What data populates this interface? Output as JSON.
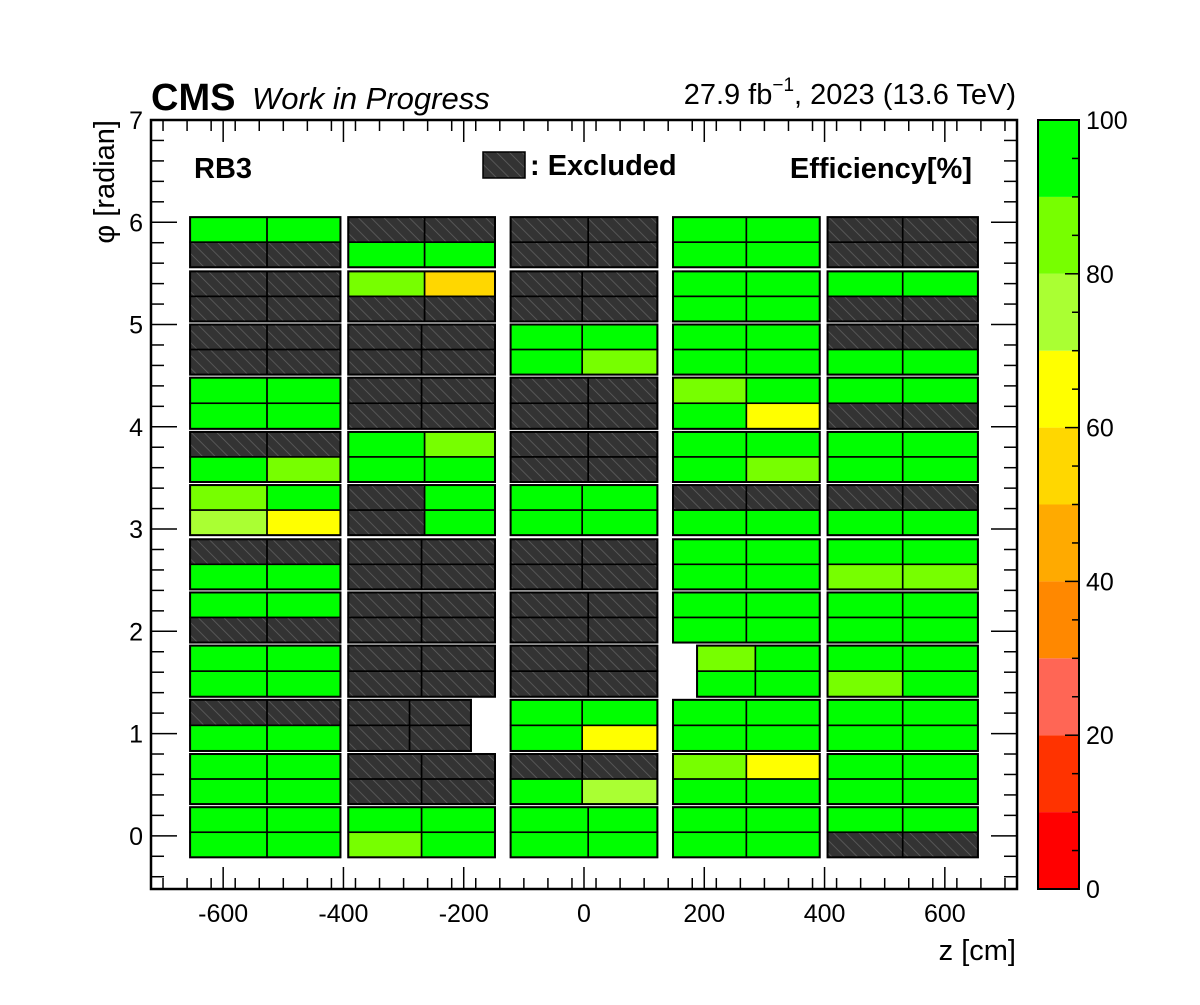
{
  "header": {
    "experiment": "CMS",
    "status": "Work in Progress",
    "luminosity": "27.9 fb",
    "lumi_exponent": "−1",
    "run_info": ", 2023 (13.6 TeV)"
  },
  "chart_data": {
    "type": "heatmap",
    "station_label": "RB3",
    "z_label": "Efficiency[%]",
    "excluded_label": ": Excluded",
    "xlabel": "z [cm]",
    "ylabel_symbol": "φ",
    "ylabel_unit": " [radian]",
    "xlim": [
      -720,
      720
    ],
    "ylim": [
      -0.52,
      7
    ],
    "zlim": [
      0,
      100
    ],
    "x_ticks": [
      -600,
      -400,
      -200,
      0,
      200,
      400,
      600
    ],
    "x_tick_labels": [
      "-600",
      "-400",
      "-200",
      "0",
      "200",
      "400",
      "600"
    ],
    "y_ticks": [
      0,
      1,
      2,
      3,
      4,
      5,
      6,
      7
    ],
    "y_tick_labels": [
      "0",
      "1",
      "2",
      "3",
      "4",
      "5",
      "6",
      "7"
    ],
    "palette_ticks": [
      0,
      20,
      40,
      60,
      80,
      100
    ],
    "palette_tick_labels": [
      "0",
      "20",
      "40",
      "60",
      "80",
      "100"
    ],
    "palette_colors": [
      "#ff0000",
      "#ff3300",
      "#ff6655",
      "#ff8800",
      "#ffaa00",
      "#ffd700",
      "#ffff00",
      "#aaff33",
      "#77ff00",
      "#00ff00"
    ],
    "excluded_color": "#333333",
    "wheels": [
      {
        "name": "W-2",
        "z_range": [
          -655,
          -405
        ]
      },
      {
        "name": "W-1",
        "z_range": [
          -392,
          -148
        ]
      },
      {
        "name": "W0",
        "z_range": [
          -122,
          122
        ]
      },
      {
        "name": "W+1",
        "z_range": [
          148,
          392
        ]
      },
      {
        "name": "W+2",
        "z_range": [
          405,
          655
        ]
      }
    ],
    "sectors": [
      {
        "phi_range": [
          -0.21,
          0.28
        ],
        "wheels": [
          {
            "split": -527,
            "rows": [
              [
                "ok",
                "ok"
              ],
              [
                "ok",
                "ok"
              ]
            ]
          },
          {
            "split": -270,
            "rows": [
              [
                "ok",
                "ok"
              ],
              [
                82,
                "ok"
              ]
            ]
          },
          {
            "split": 7,
            "rows": [
              [
                "ok",
                "ok"
              ],
              [
                "ok",
                "ok"
              ]
            ]
          },
          {
            "split": 270,
            "rows": [
              [
                "ok",
                "ok"
              ],
              [
                "ok",
                "ok"
              ]
            ]
          },
          {
            "split": 530,
            "rows": [
              [
                "ok",
                "ok"
              ],
              [
                "x",
                "x"
              ]
            ]
          }
        ]
      },
      {
        "phi_range": [
          0.31,
          0.8
        ],
        "wheels": [
          {
            "split": -527,
            "rows": [
              [
                "ok",
                "ok"
              ],
              [
                "ok",
                "ok"
              ]
            ]
          },
          {
            "split": -270,
            "rows": [
              [
                "x",
                "x"
              ],
              [
                "x",
                "x"
              ]
            ]
          },
          {
            "split": -3,
            "rows": [
              [
                "x",
                "x"
              ],
              [
                "ok",
                72
              ]
            ]
          },
          {
            "split": 270,
            "rows": [
              [
                82,
                62
              ],
              [
                "ok",
                "ok"
              ]
            ]
          },
          {
            "split": 530,
            "rows": [
              [
                "ok",
                "ok"
              ],
              [
                "ok",
                "ok"
              ]
            ]
          }
        ]
      },
      {
        "phi_range": [
          0.83,
          1.33
        ],
        "wheels": [
          {
            "split": -527,
            "rows": [
              [
                "x",
                "x"
              ],
              [
                "ok",
                "ok"
              ]
            ]
          },
          {
            "split": -290,
            "z_range": [
              -392,
              -188
            ],
            "rows": [
              [
                "x",
                "x"
              ],
              [
                "x",
                "x"
              ]
            ]
          },
          {
            "split": -3,
            "rows": [
              [
                "ok",
                "ok"
              ],
              [
                "ok",
                62
              ]
            ]
          },
          {
            "split": 270,
            "rows": [
              [
                "ok",
                "ok"
              ],
              [
                "ok",
                "ok"
              ]
            ]
          },
          {
            "split": 530,
            "rows": [
              [
                "ok",
                "ok"
              ],
              [
                "ok",
                "ok"
              ]
            ]
          }
        ]
      },
      {
        "phi_range": [
          1.36,
          1.86
        ],
        "wheels": [
          {
            "split": -527,
            "rows": [
              [
                "ok",
                "ok"
              ],
              [
                "ok",
                "ok"
              ]
            ]
          },
          {
            "split": -270,
            "rows": [
              [
                "x",
                "x"
              ],
              [
                "x",
                "x"
              ]
            ]
          },
          {
            "split": 7,
            "rows": [
              [
                "x",
                "x"
              ],
              [
                "x",
                "x"
              ]
            ]
          },
          {
            "split": 285,
            "z_range": [
              188,
              392
            ],
            "rows": [
              [
                82,
                "ok"
              ],
              [
                "ok",
                "ok"
              ]
            ]
          },
          {
            "split": 530,
            "rows": [
              [
                "ok",
                "ok"
              ],
              [
                82,
                "ok"
              ]
            ]
          }
        ]
      },
      {
        "phi_range": [
          1.89,
          2.38
        ],
        "wheels": [
          {
            "split": -527,
            "rows": [
              [
                "ok",
                "ok"
              ],
              [
                "x",
                "x"
              ]
            ]
          },
          {
            "split": -270,
            "rows": [
              [
                "x",
                "x"
              ],
              [
                "x",
                "x"
              ]
            ]
          },
          {
            "split": 7,
            "rows": [
              [
                "x",
                "x"
              ],
              [
                "x",
                "x"
              ]
            ]
          },
          {
            "split": 270,
            "rows": [
              [
                "ok",
                "ok"
              ],
              [
                "ok",
                "ok"
              ]
            ]
          },
          {
            "split": 530,
            "rows": [
              [
                "ok",
                "ok"
              ],
              [
                "ok",
                "ok"
              ]
            ]
          }
        ]
      },
      {
        "phi_range": [
          2.41,
          2.9
        ],
        "wheels": [
          {
            "split": -527,
            "rows": [
              [
                "x",
                "x"
              ],
              [
                "ok",
                "ok"
              ]
            ]
          },
          {
            "split": -270,
            "rows": [
              [
                "x",
                "x"
              ],
              [
                "x",
                "x"
              ]
            ]
          },
          {
            "split": -3,
            "rows": [
              [
                "x",
                "x"
              ],
              [
                "x",
                "x"
              ]
            ]
          },
          {
            "split": 270,
            "rows": [
              [
                "ok",
                "ok"
              ],
              [
                "ok",
                "ok"
              ]
            ]
          },
          {
            "split": 530,
            "rows": [
              [
                "ok",
                "ok"
              ],
              [
                82,
                82
              ]
            ]
          }
        ]
      },
      {
        "phi_range": [
          2.94,
          3.43
        ],
        "wheels": [
          {
            "split": -527,
            "rows": [
              [
                82,
                "ok"
              ],
              [
                72,
                62
              ]
            ]
          },
          {
            "split": -265,
            "rows": [
              [
                "x",
                "ok"
              ],
              [
                "x",
                "ok"
              ]
            ]
          },
          {
            "split": -3,
            "rows": [
              [
                "ok",
                "ok"
              ],
              [
                "ok",
                "ok"
              ]
            ]
          },
          {
            "split": 270,
            "rows": [
              [
                "x",
                "x"
              ],
              [
                "ok",
                "ok"
              ]
            ]
          },
          {
            "split": 530,
            "rows": [
              [
                "x",
                "x"
              ],
              [
                "ok",
                "ok"
              ]
            ]
          }
        ]
      },
      {
        "phi_range": [
          3.46,
          3.95
        ],
        "wheels": [
          {
            "split": -527,
            "rows": [
              [
                "x",
                "x"
              ],
              [
                "ok",
                82
              ]
            ]
          },
          {
            "split": -265,
            "rows": [
              [
                "ok",
                82
              ],
              [
                "ok",
                "ok"
              ]
            ]
          },
          {
            "split": 7,
            "rows": [
              [
                "x",
                "x"
              ],
              [
                "x",
                "x"
              ]
            ]
          },
          {
            "split": 270,
            "rows": [
              [
                "ok",
                "ok"
              ],
              [
                "ok",
                82
              ]
            ]
          },
          {
            "split": 530,
            "rows": [
              [
                "ok",
                "ok"
              ],
              [
                "ok",
                "ok"
              ]
            ]
          }
        ]
      },
      {
        "phi_range": [
          3.98,
          4.48
        ],
        "wheels": [
          {
            "split": -527,
            "rows": [
              [
                "ok",
                "ok"
              ],
              [
                "ok",
                "ok"
              ]
            ]
          },
          {
            "split": -270,
            "rows": [
              [
                "x",
                "x"
              ],
              [
                "x",
                "x"
              ]
            ]
          },
          {
            "split": 7,
            "rows": [
              [
                "x",
                "x"
              ],
              [
                "x",
                "x"
              ]
            ]
          },
          {
            "split": 270,
            "rows": [
              [
                82,
                "ok"
              ],
              [
                "ok",
                62
              ]
            ]
          },
          {
            "split": 530,
            "rows": [
              [
                "ok",
                "ok"
              ],
              [
                "x",
                "x"
              ]
            ]
          }
        ]
      },
      {
        "phi_range": [
          4.51,
          5.0
        ],
        "wheels": [
          {
            "split": -527,
            "rows": [
              [
                "x",
                "x"
              ],
              [
                "x",
                "x"
              ]
            ]
          },
          {
            "split": -270,
            "rows": [
              [
                "x",
                "x"
              ],
              [
                "x",
                "x"
              ]
            ]
          },
          {
            "split": -3,
            "rows": [
              [
                "ok",
                "ok"
              ],
              [
                "ok",
                82
              ]
            ]
          },
          {
            "split": 270,
            "rows": [
              [
                "ok",
                "ok"
              ],
              [
                "ok",
                "ok"
              ]
            ]
          },
          {
            "split": 530,
            "rows": [
              [
                "x",
                "x"
              ],
              [
                "ok",
                "ok"
              ]
            ]
          }
        ]
      },
      {
        "phi_range": [
          5.03,
          5.52
        ],
        "wheels": [
          {
            "split": -527,
            "rows": [
              [
                "x",
                "x"
              ],
              [
                "x",
                "x"
              ]
            ]
          },
          {
            "split": -265,
            "rows": [
              [
                82,
                52
              ],
              [
                "x",
                "x"
              ]
            ]
          },
          {
            "split": -3,
            "rows": [
              [
                "x",
                "x"
              ],
              [
                "x",
                "x"
              ]
            ]
          },
          {
            "split": 270,
            "rows": [
              [
                "ok",
                "ok"
              ],
              [
                "ok",
                "ok"
              ]
            ]
          },
          {
            "split": 530,
            "rows": [
              [
                "ok",
                "ok"
              ],
              [
                "x",
                "x"
              ]
            ]
          }
        ]
      },
      {
        "phi_range": [
          5.56,
          6.05
        ],
        "wheels": [
          {
            "split": -527,
            "rows": [
              [
                "ok",
                "ok"
              ],
              [
                "x",
                "x"
              ]
            ]
          },
          {
            "split": -265,
            "rows": [
              [
                "x",
                "x"
              ],
              [
                "ok",
                "ok"
              ]
            ]
          },
          {
            "split": 7,
            "rows": [
              [
                "x",
                "x"
              ],
              [
                "x",
                "x"
              ]
            ]
          },
          {
            "split": 270,
            "rows": [
              [
                "ok",
                "ok"
              ],
              [
                "ok",
                "ok"
              ]
            ]
          },
          {
            "split": 530,
            "rows": [
              [
                "x",
                "x"
              ],
              [
                "x",
                "x"
              ]
            ]
          }
        ]
      }
    ]
  }
}
